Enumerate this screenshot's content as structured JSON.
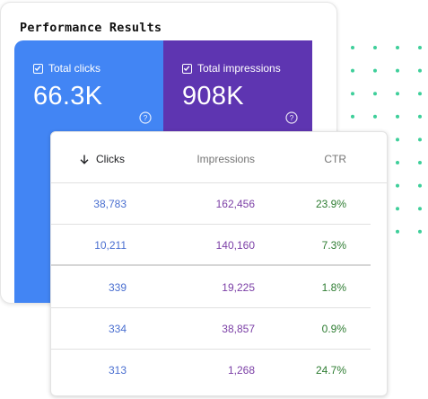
{
  "title": "Performance Results",
  "metrics": {
    "clicks": {
      "label": "Total clicks",
      "value": "66.3K",
      "color": "#4285f4"
    },
    "impressions": {
      "label": "Total impressions",
      "value": "908K",
      "color": "#5e35b1"
    }
  },
  "table": {
    "headers": {
      "clicks": "Clicks",
      "impressions": "Impressions",
      "ctr": "CTR"
    },
    "sort_icon": "arrow-down-icon",
    "rows": [
      {
        "clicks": "38,783",
        "impressions": "162,456",
        "ctr": "23.9%"
      },
      {
        "clicks": "10,211",
        "impressions": "140,160",
        "ctr": "7.3%"
      },
      {
        "clicks": "339",
        "impressions": "19,225",
        "ctr": "1.8%"
      },
      {
        "clicks": "334",
        "impressions": "38,857",
        "ctr": "0.9%"
      },
      {
        "clicks": "313",
        "impressions": "1,268",
        "ctr": "24.7%"
      }
    ]
  },
  "colors": {
    "dots": "#3ecf9a",
    "clicks_text": "#4a6fd0",
    "impressions_text": "#7b3fa6",
    "ctr_text": "#2e7d32"
  }
}
